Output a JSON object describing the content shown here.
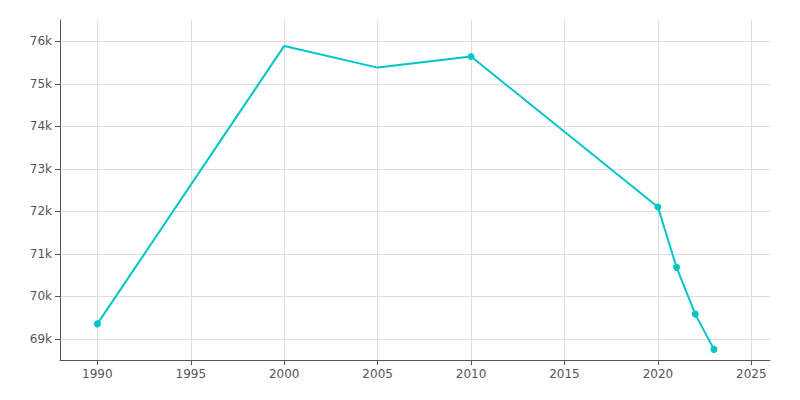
{
  "chart_data": {
    "type": "line",
    "x": [
      1990,
      2000,
      2005,
      2010,
      2020,
      2021,
      2022,
      2023
    ],
    "values": [
      69350,
      75890,
      75380,
      75640,
      72100,
      70680,
      69580,
      68750
    ],
    "color": "#00C5C8",
    "marker": "circle",
    "marker_x": [
      1990,
      2010,
      2020,
      2021,
      2022,
      2023
    ],
    "xlim": [
      1988,
      2026
    ],
    "xticks": [
      1990,
      1995,
      2000,
      2005,
      2010,
      2015,
      2020,
      2025
    ],
    "ylim": [
      68500,
      76500
    ],
    "yticks": [
      {
        "value": 69000,
        "label": "69k"
      },
      {
        "value": 70000,
        "label": "70k"
      },
      {
        "value": 71000,
        "label": "71k"
      },
      {
        "value": 72000,
        "label": "72k"
      },
      {
        "value": 73000,
        "label": "73k"
      },
      {
        "value": 74000,
        "label": "74k"
      },
      {
        "value": 75000,
        "label": "75k"
      },
      {
        "value": 76000,
        "label": "76k"
      }
    ],
    "grid": true
  }
}
